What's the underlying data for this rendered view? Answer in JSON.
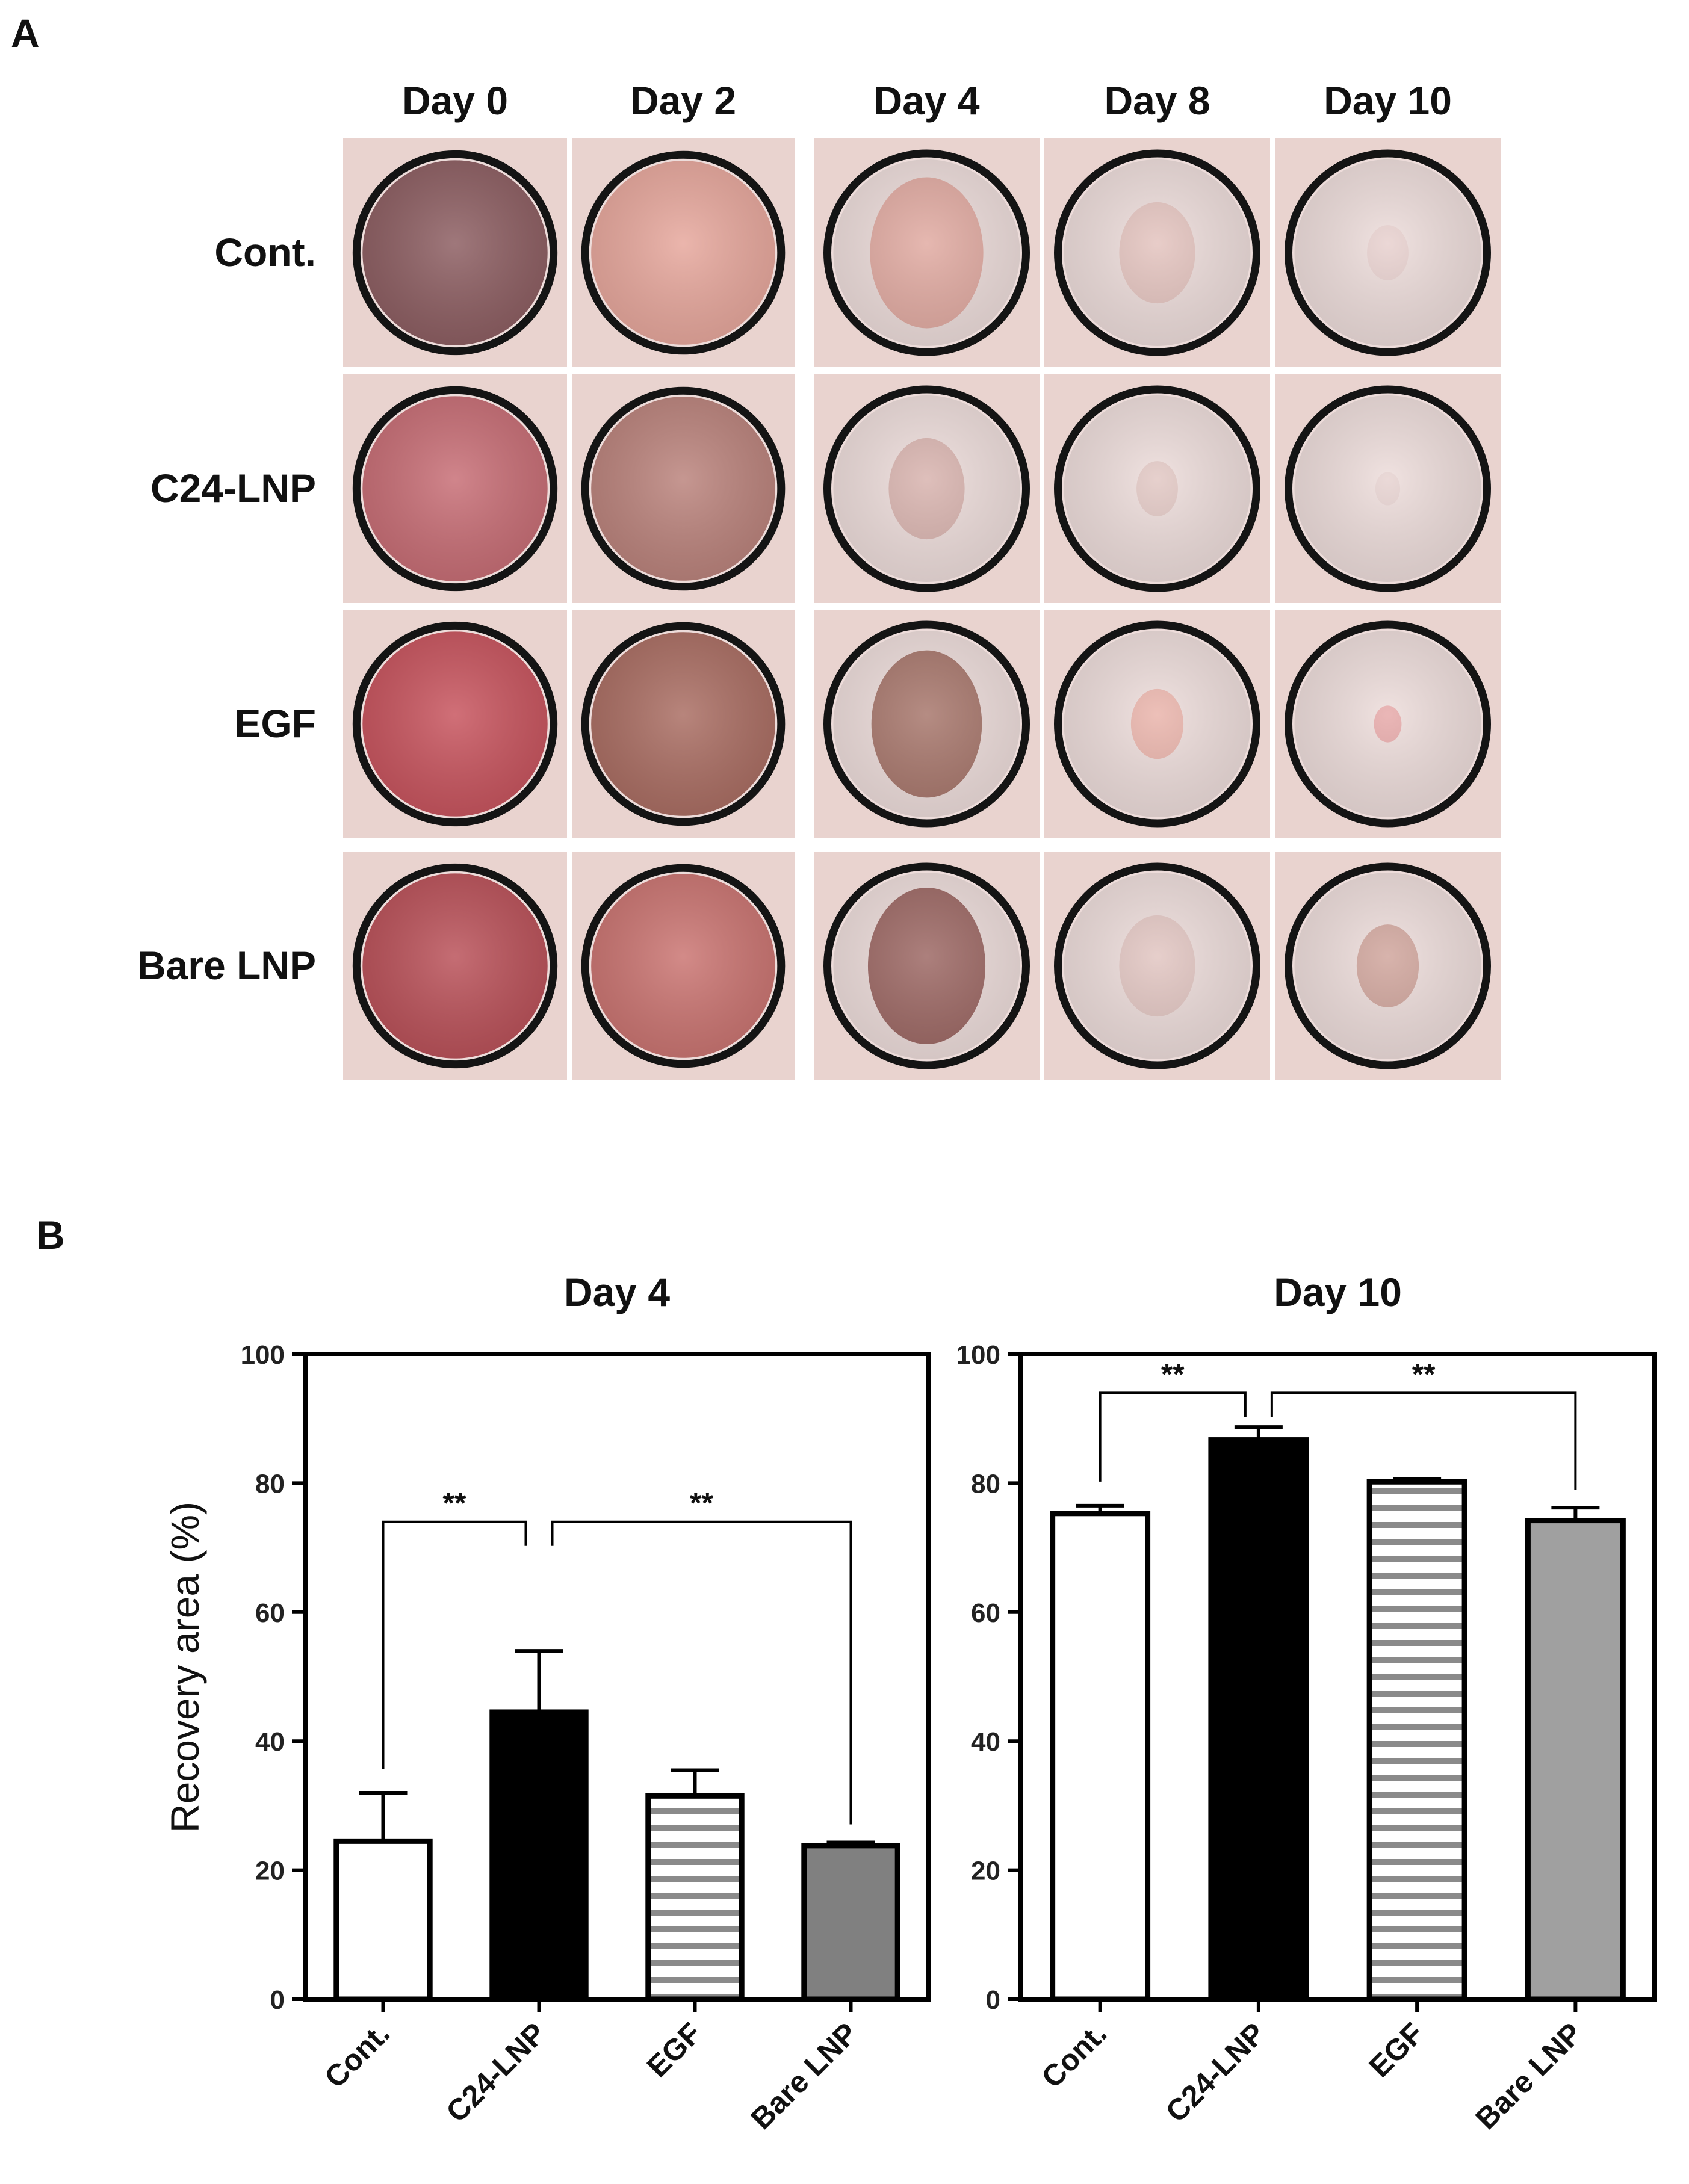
{
  "panel_a": {
    "label": "A",
    "columns": [
      "Day 0",
      "Day 2",
      "Day 4",
      "Day 8",
      "Day 10"
    ],
    "rows": [
      "Cont.",
      "C24-LNP",
      "EGF",
      "Bare LNP"
    ],
    "photo_colors": [
      [
        "#8a5a5e",
        "#e6a59a",
        "#e0a89f",
        "#e3c2bd",
        "#e7cfcd"
      ],
      [
        "#c66a72",
        "#b98079",
        "#d7b1ac",
        "#e1c6c2",
        "#e6d1cf"
      ],
      [
        "#c6505a",
        "#a86a5f",
        "#a57368",
        "#e9b2a9",
        "#e6a7a7"
      ],
      [
        "#b84d55",
        "#c9716e",
        "#9a6460",
        "#e1c4c0",
        "#cfa39a"
      ]
    ],
    "wound_remaining": [
      [
        1.0,
        1.0,
        0.82,
        0.55,
        0.3
      ],
      [
        1.0,
        1.0,
        0.55,
        0.3,
        0.18
      ],
      [
        1.0,
        1.0,
        0.8,
        0.38,
        0.2
      ],
      [
        1.0,
        1.0,
        0.85,
        0.55,
        0.45
      ]
    ]
  },
  "panel_b": {
    "label": "B",
    "y_axis_label": "Recovery area (%)"
  },
  "chart_data": [
    {
      "type": "bar",
      "title": "Day 4",
      "categories": [
        "Cont.",
        "C24-LNP",
        "EGF",
        "Bare LNP"
      ],
      "values": [
        24.5,
        44.5,
        31.5,
        23.8
      ],
      "errors": [
        7.5,
        9.5,
        4.0,
        0.5
      ],
      "fills": [
        "#ffffff",
        "#000000",
        "stripes",
        "#808080"
      ],
      "ylabel": "Recovery area (%)",
      "ylim": [
        0,
        100
      ],
      "yticks": [
        0,
        20,
        40,
        60,
        80,
        100
      ],
      "significance": [
        {
          "from": 0,
          "to": 1,
          "label": "**"
        },
        {
          "from": 1,
          "to": 3,
          "label": "**"
        }
      ]
    },
    {
      "type": "bar",
      "title": "Day 10",
      "categories": [
        "Cont.",
        "C24-LNP",
        "EGF",
        "Bare LNP"
      ],
      "values": [
        75.3,
        86.7,
        80.2,
        74.2
      ],
      "errors": [
        1.2,
        2.0,
        0.4,
        2.0
      ],
      "fills": [
        "#ffffff",
        "#000000",
        "stripes",
        "#a0a0a0"
      ],
      "ylim": [
        0,
        100
      ],
      "yticks": [
        0,
        20,
        40,
        60,
        80,
        100
      ],
      "significance": [
        {
          "from": 0,
          "to": 1,
          "label": "**"
        },
        {
          "from": 1,
          "to": 3,
          "label": "**"
        }
      ]
    }
  ]
}
